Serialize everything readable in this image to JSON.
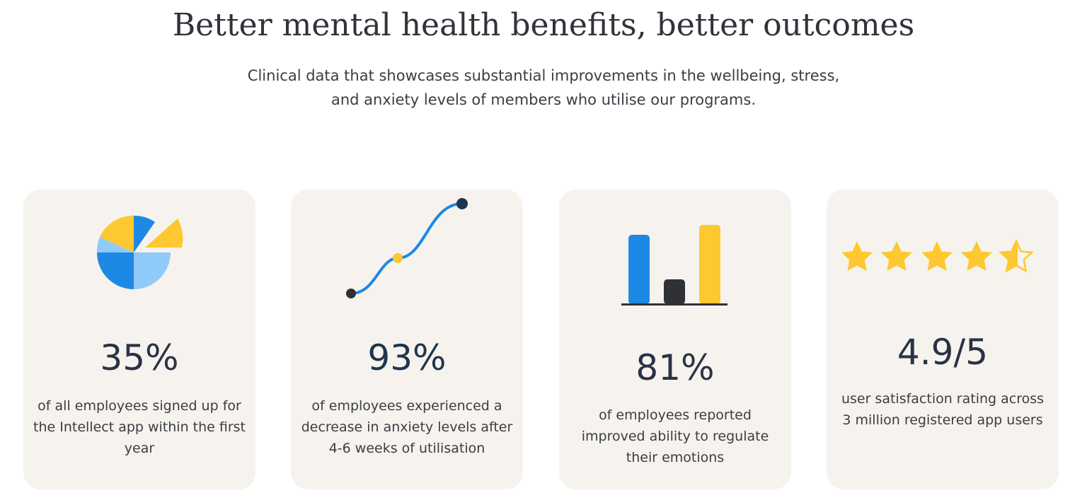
{
  "header": {
    "title": "Better mental health benefits, better outcomes",
    "subtitle_line1": "Clinical data that showcases substantial improvements in the wellbeing, stress,",
    "subtitle_line2": "and anxiety levels of members who utilise our programs."
  },
  "colors": {
    "card_background": "#f6f3ee",
    "blue": "#1e88e5",
    "light_blue": "#90caf9",
    "yellow": "#fdc830",
    "dark": "#2f3135"
  },
  "cards": [
    {
      "icon": "pie-chart-icon",
      "stat": "35%",
      "description": "of all employees signed up for the Intellect app within the first year"
    },
    {
      "icon": "line-graph-icon",
      "stat": "93%",
      "description": "of employees experienced a decrease in anxiety levels after 4-6 weeks of utilisation"
    },
    {
      "icon": "bar-chart-icon",
      "stat": "81%",
      "description": "of employees reported improved ability to regulate their emotions"
    },
    {
      "icon": "star-rating-icon",
      "stat": "4.9/5",
      "description": "user satisfaction rating across 3 million registered app users",
      "rating_value": 4.9,
      "rating_max": 5
    }
  ]
}
